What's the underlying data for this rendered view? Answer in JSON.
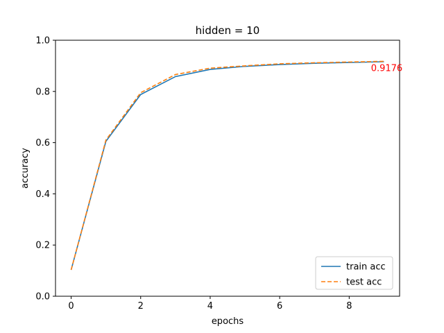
{
  "chart_data": {
    "type": "line",
    "title": "hidden = 10",
    "xlabel": "epochs",
    "ylabel": "accuracy",
    "xlim": [
      -0.45,
      9.45
    ],
    "ylim": [
      0.0,
      1.0
    ],
    "xticks": [
      0,
      2,
      4,
      6,
      8
    ],
    "xtick_labels": [
      "0",
      "2",
      "4",
      "6",
      "8"
    ],
    "yticks": [
      0.0,
      0.2,
      0.4,
      0.6,
      0.8,
      1.0
    ],
    "ytick_labels": [
      "0.0",
      "0.2",
      "0.4",
      "0.6",
      "0.8",
      "1.0"
    ],
    "grid": false,
    "legend_position": "lower-right",
    "x": [
      0,
      1,
      2,
      3,
      4,
      5,
      6,
      7,
      8,
      9
    ],
    "series": [
      {
        "name": "train acc",
        "color": "#1f77b4",
        "linestyle": "solid",
        "values": [
          0.103,
          0.605,
          0.788,
          0.858,
          0.886,
          0.898,
          0.905,
          0.91,
          0.913,
          0.916
        ]
      },
      {
        "name": "test acc",
        "color": "#ff7f0e",
        "linestyle": "dashed",
        "values": [
          0.103,
          0.61,
          0.795,
          0.866,
          0.891,
          0.9,
          0.908,
          0.912,
          0.915,
          0.9176
        ]
      }
    ],
    "annotations": [
      {
        "text": "0.9176",
        "x": 9,
        "y": 0.9176,
        "color": "#ff0000"
      }
    ]
  }
}
